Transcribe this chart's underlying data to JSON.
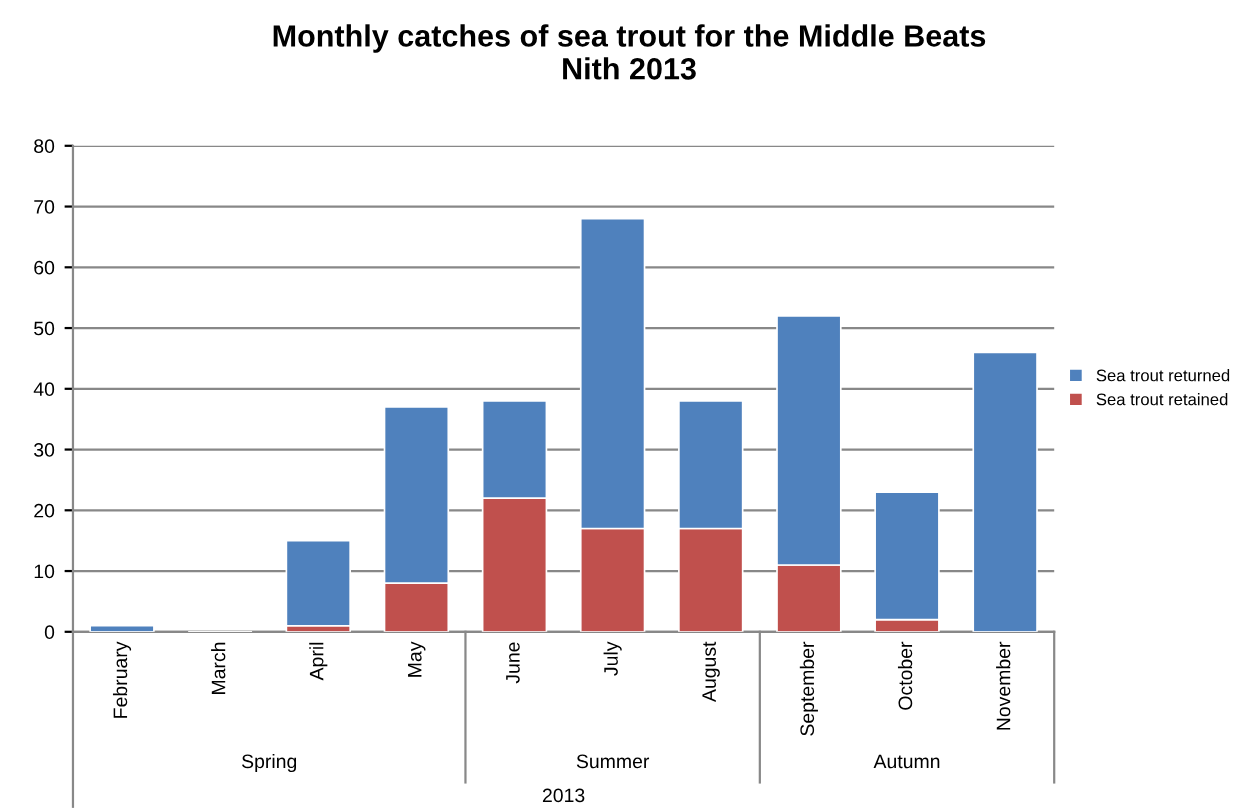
{
  "chart_data": {
    "type": "bar",
    "title": "Monthly catches of sea trout for the Middle Beats\nNith 2013",
    "xlabel": "2013",
    "categories": [
      "February",
      "March",
      "April",
      "May",
      "June",
      "July",
      "August",
      "September",
      "October",
      "November"
    ],
    "stacked": true,
    "series": [
      {
        "name": "Sea trout retained",
        "color": "#c0504d",
        "values": [
          0,
          0,
          1,
          8,
          22,
          17,
          17,
          11,
          2,
          0
        ]
      },
      {
        "name": "Sea trout returned",
        "color": "#4f81bd",
        "values": [
          1,
          0,
          14,
          29,
          16,
          51,
          21,
          41,
          21,
          46
        ]
      }
    ],
    "annotations": [
      "Spring",
      "Summer",
      "Autumn"
    ],
    "ylim": [
      0,
      80
    ],
    "yticks": [
      0,
      10,
      20,
      30,
      40,
      50,
      60,
      70,
      80
    ],
    "grid": "y",
    "legend": "right"
  }
}
